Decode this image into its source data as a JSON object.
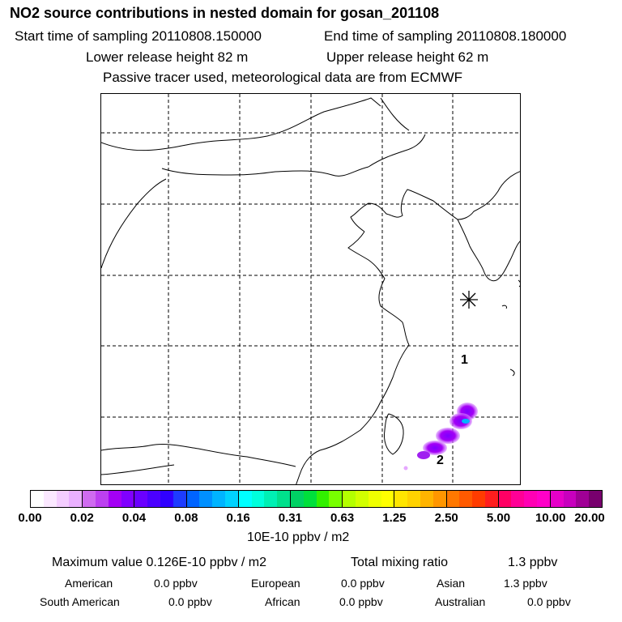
{
  "header": {
    "title": "NO2 source contributions in nested domain for gosan_201108",
    "start_label": "Start time of sampling 20110808.150000",
    "end_label": "End time of sampling 20110808.180000",
    "lower_label": "Lower release height   82 m",
    "upper_label": "Upper release height   62 m",
    "tracer_note": "Passive tracer used, meteorological data are from ECMWF"
  },
  "map": {
    "markers": [
      {
        "label": "1"
      },
      {
        "label": "2"
      }
    ],
    "receptor_icon": "asterisk-icon",
    "plume_color": "#a020f0"
  },
  "colorbar": {
    "ticks": [
      "0.00",
      "0.02",
      "0.04",
      "0.08",
      "0.16",
      "0.31",
      "0.63",
      "1.25",
      "2.50",
      "5.00",
      "10.00",
      "20.00"
    ],
    "colors": [
      [
        "#ffffff",
        "#fbe8ff",
        "#f4cdff",
        "#eab0ff"
      ],
      [
        "#cf6bf0",
        "#bc40f0",
        "#a400f5",
        "#8000ff"
      ],
      [
        "#6a00ff",
        "#4b00ff",
        "#3000ff",
        "#1e3cff"
      ],
      [
        "#0064ff",
        "#0090ff",
        "#00b4ff",
        "#00d2ff"
      ],
      [
        "#00ffff",
        "#00ffdc",
        "#00f0b4",
        "#00e08c"
      ],
      [
        "#00d264",
        "#00e03c",
        "#32f000",
        "#78ff00"
      ],
      [
        "#b4ff00",
        "#d2ff00",
        "#f0ff00",
        "#ffff00"
      ],
      [
        "#ffe600",
        "#ffd200",
        "#ffb400",
        "#ff9600"
      ],
      [
        "#ff7800",
        "#ff5a00",
        "#ff3c00",
        "#ff1e1e"
      ],
      [
        "#ff0064",
        "#ff0096",
        "#ff00b4",
        "#ff00c8"
      ],
      [
        "#e600c8",
        "#c800be",
        "#a00096",
        "#78006e"
      ]
    ],
    "unit": "10E-10 ppbv / m2"
  },
  "summary": {
    "max_label": "Maximum value  0.126E-10 ppbv / m2",
    "total_label": "Total mixing ratio",
    "total_value": "1.3 ppbv",
    "rows": [
      {
        "name": "American",
        "value": "0.0 ppbv"
      },
      {
        "name": "European",
        "value": "0.0 ppbv"
      },
      {
        "name": "Asian",
        "value": "1.3 ppbv"
      },
      {
        "name": "South American",
        "value": "0.0 ppbv"
      },
      {
        "name": "African",
        "value": "0.0 ppbv"
      },
      {
        "name": "Australian",
        "value": "0.0 ppbv"
      }
    ]
  }
}
